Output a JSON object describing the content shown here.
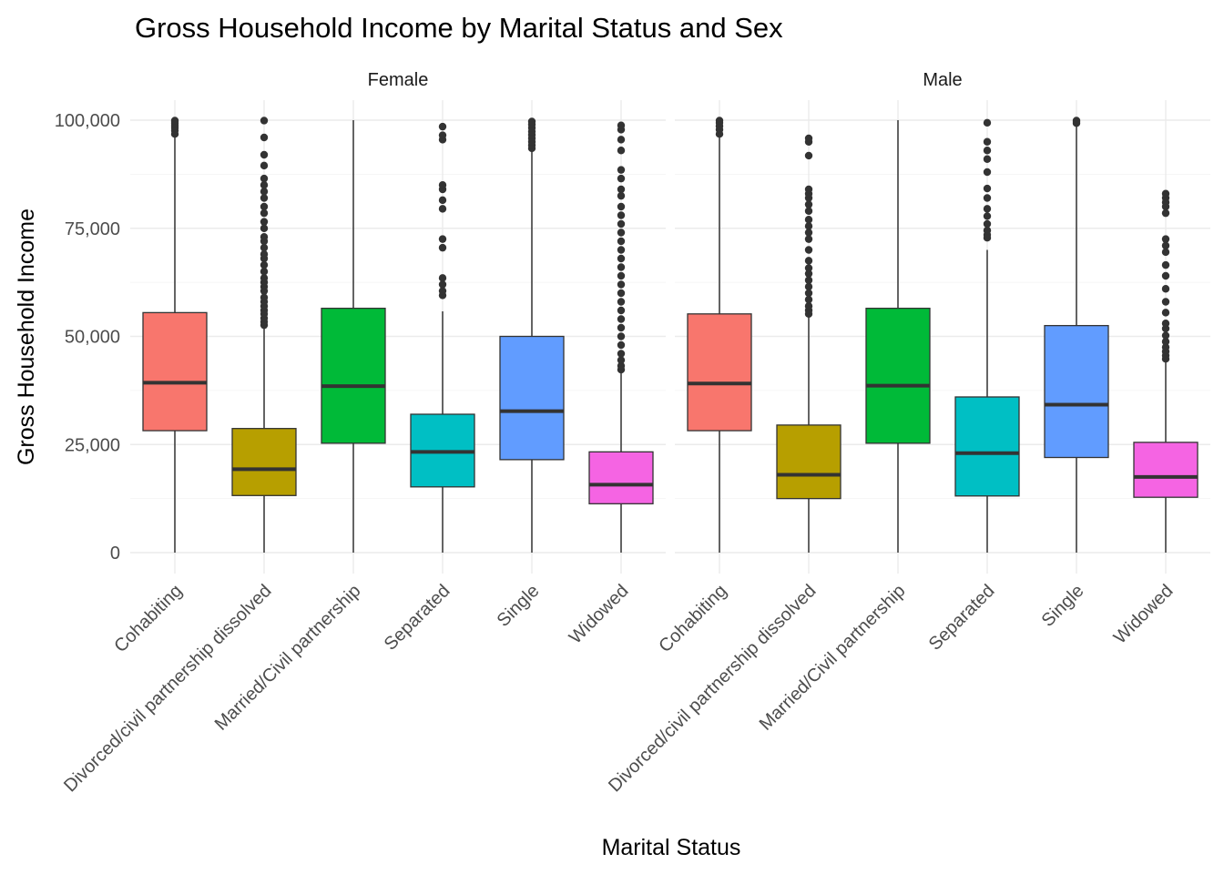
{
  "chart_data": {
    "type": "boxplot",
    "title": "Gross Household Income by Marital Status and Sex",
    "xlabel": "Marital Status",
    "ylabel": "Gross Household Income",
    "ylim": [
      0,
      100000
    ],
    "yticks": [
      0,
      25000,
      50000,
      75000,
      100000
    ],
    "ytick_labels": [
      "0",
      "25,000",
      "50,000",
      "75,000",
      "100,000"
    ],
    "categories": [
      "Cohabiting",
      "Divorced/civil partnership dissolved",
      "Married/Civil partnership",
      "Separated",
      "Single",
      "Widowed"
    ],
    "colors": [
      "#F8766D",
      "#B79F00",
      "#00BA38",
      "#00BFC4",
      "#619CFF",
      "#F564E3"
    ],
    "grid": true,
    "legend": "none",
    "facets": [
      {
        "name": "Female",
        "boxes": [
          {
            "category": "Cohabiting",
            "min": 0,
            "q1": 28200,
            "median": 39300,
            "q3": 55500,
            "max": 96000,
            "outliers": [
              96800,
              97600,
              98200,
              98700,
              99200,
              99600,
              99900
            ]
          },
          {
            "category": "Divorced/civil partnership dissolved",
            "min": 0,
            "q1": 13200,
            "median": 19300,
            "q3": 28700,
            "max": 52000,
            "outliers": [
              52600,
              53400,
              54200,
              55200,
              56000,
              57000,
              58000,
              59000,
              60500,
              61500,
              62500,
              63500,
              65000,
              66500,
              68000,
              69000,
              70500,
              72000,
              73000,
              75000,
              76500,
              78500,
              80000,
              82000,
              83500,
              85000,
              86500,
              89500,
              92000,
              96000,
              99900
            ]
          },
          {
            "category": "Married/Civil partnership",
            "min": 0,
            "q1": 25300,
            "median": 38500,
            "q3": 56500,
            "max": 100000,
            "outliers": []
          },
          {
            "category": "Separated",
            "min": 0,
            "q1": 15200,
            "median": 23300,
            "q3": 32000,
            "max": 55800,
            "outliers": [
              59500,
              60500,
              62000,
              63500,
              70500,
              72500,
              79500,
              81500,
              84000,
              85000,
              95500,
              96500,
              98500
            ]
          },
          {
            "category": "Single",
            "min": 0,
            "q1": 21500,
            "median": 32700,
            "q3": 50000,
            "max": 93000,
            "outliers": [
              93500,
              94200,
              95000,
              95800,
              96600,
              97400,
              98200,
              99000,
              99700
            ]
          },
          {
            "category": "Widowed",
            "min": 0,
            "q1": 11300,
            "median": 15700,
            "q3": 23300,
            "max": 41800,
            "outliers": [
              42300,
              43200,
              44500,
              46000,
              48000,
              50000,
              52000,
              54000,
              56000,
              58000,
              60000,
              62000,
              64000,
              66000,
              68000,
              70000,
              72000,
              74000,
              76000,
              78000,
              80000,
              82500,
              84000,
              86500,
              88500,
              93000,
              95500,
              97800,
              98800
            ]
          }
        ]
      },
      {
        "name": "Male",
        "boxes": [
          {
            "category": "Cohabiting",
            "min": 0,
            "q1": 28200,
            "median": 39100,
            "q3": 55200,
            "max": 96000,
            "outliers": [
              96800,
              97800,
              98600,
              99400,
              99900
            ]
          },
          {
            "category": "Divorced/civil partnership dissolved",
            "min": 0,
            "q1": 12500,
            "median": 18000,
            "q3": 29500,
            "max": 54700,
            "outliers": [
              55200,
              56000,
              57000,
              58500,
              60000,
              61500,
              63000,
              64500,
              65800,
              67500,
              70000,
              72500,
              74000,
              75500,
              77000,
              79000,
              80500,
              82000,
              83000,
              84000,
              91800,
              95000,
              95800
            ]
          },
          {
            "category": "Married/Civil partnership",
            "min": 0,
            "q1": 25300,
            "median": 38600,
            "q3": 56500,
            "max": 100000,
            "outliers": []
          },
          {
            "category": "Separated",
            "min": 0,
            "q1": 13100,
            "median": 23000,
            "q3": 36000,
            "max": 70000,
            "outliers": [
              72800,
              73500,
              74500,
              76000,
              77800,
              79500,
              82000,
              84200,
              88000,
              91000,
              93000,
              95000,
              99400
            ]
          },
          {
            "category": "Single",
            "min": 0,
            "q1": 22000,
            "median": 34200,
            "q3": 52500,
            "max": 99000,
            "outliers": [
              99300,
              99600,
              99900
            ]
          },
          {
            "category": "Widowed",
            "min": 0,
            "q1": 12800,
            "median": 17500,
            "q3": 25500,
            "max": 44200,
            "outliers": [
              44800,
              45600,
              46500,
              47500,
              48800,
              50200,
              51800,
              53000,
              55500,
              58000,
              61000,
              64000,
              66500,
              69500,
              71000,
              72500,
              78500,
              80000,
              81000,
              82000,
              83000
            ]
          }
        ]
      }
    ]
  }
}
